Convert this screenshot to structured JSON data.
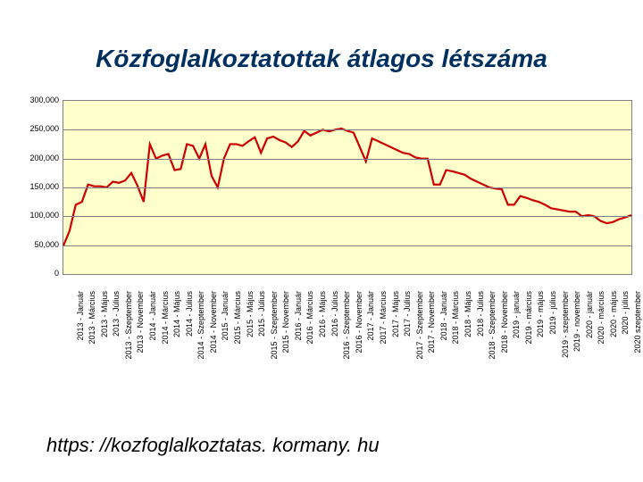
{
  "title": "Közfoglalkoztatottak átlagos létszáma",
  "footer": "https: //kozfoglalkoztatas. kormany. hu",
  "chart": {
    "type": "line",
    "background_color": "#ffffcc",
    "grid_color": "#808080",
    "line_color": "#cc0000",
    "line_width": 2.2,
    "title_fontsize": 28,
    "title_color": "#003060",
    "axis_label_fontsize": 9,
    "ylim": [
      0,
      300000
    ],
    "ytick_step": 50000,
    "y_ticks": [
      "0",
      "50,000",
      "100,000",
      "150,000",
      "200,000",
      "250,000",
      "300,000"
    ],
    "x_labels": [
      "2013 - Január",
      "2013 - Március",
      "2013 - Május",
      "2013 - Július",
      "2013 - Szeptember",
      "2013 - November",
      "2014 - Január",
      "2014 - Március",
      "2014 - Május",
      "2014 - Július",
      "2014 - Szeptember",
      "2014 - November",
      "2015 - Január",
      "2015 - Március",
      "2015 - Május",
      "2015 - Július",
      "2015 - Szeptember",
      "2015 - November",
      "2016 - Január",
      "2016 - Március",
      "2016 - Május",
      "2016 - Július",
      "2016 - Szeptember",
      "2016 - November",
      "2017 - Január",
      "2017 - Március",
      "2017 - Május",
      "2017 - Július",
      "2017 - Szeptember",
      "2017 - November",
      "2018 - Január",
      "2018 - Március",
      "2018 - Május",
      "2018 - Július",
      "2018 - Szeptember",
      "2018 - November",
      "2019 - január",
      "2019 - március",
      "2019 - május",
      "2019 - július",
      "2019 - szeptember",
      "2019 - november",
      "2020 - január",
      "2020 - március",
      "2020 - május",
      "2020 - július",
      "2020 szeptember"
    ],
    "values": [
      49000,
      75000,
      120000,
      125000,
      155000,
      152000,
      152000,
      150000,
      160000,
      158000,
      162000,
      175000,
      153000,
      125000,
      225000,
      200000,
      205000,
      208000,
      180000,
      182000,
      225000,
      222000,
      200000,
      225000,
      170000,
      150000,
      200000,
      225000,
      225000,
      222000,
      230000,
      237000,
      210000,
      235000,
      238000,
      232000,
      228000,
      220000,
      230000,
      248000,
      240000,
      245000,
      250000,
      247000,
      250000,
      252000,
      248000,
      245000,
      220000,
      195000,
      235000,
      230000,
      225000,
      220000,
      215000,
      210000,
      208000,
      202000,
      200000,
      200000,
      155000,
      155000,
      180000,
      178000,
      175000,
      172000,
      165000,
      160000,
      155000,
      150000,
      148000,
      147000,
      120000,
      120000,
      135000,
      132000,
      128000,
      125000,
      120000,
      114000,
      112000,
      110000,
      108000,
      108000,
      100000,
      102000,
      100000,
      92000,
      88000,
      90000,
      95000,
      98000,
      102000
    ]
  }
}
